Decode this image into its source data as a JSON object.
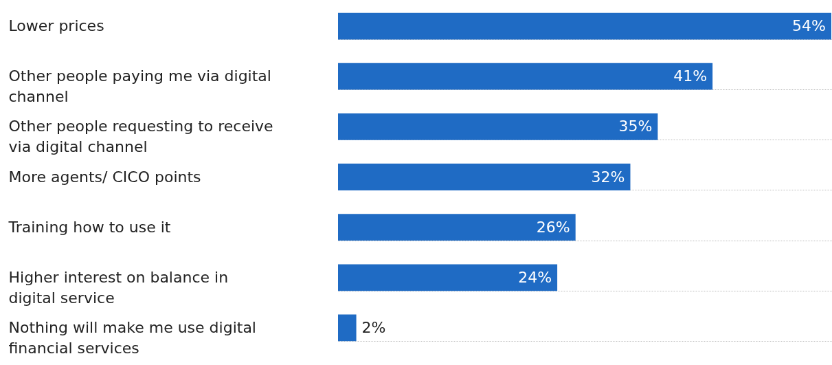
{
  "chart_data": {
    "type": "bar",
    "orientation": "horizontal",
    "categories": [
      "Lower prices",
      "Other people paying me via digital channel",
      "Other people requesting to receive via digital channel",
      "More agents/ CICO points",
      "Training how to use it",
      "Higher interest on balance in digital service",
      "Nothing will make me use digital financial services"
    ],
    "values": [
      54,
      41,
      35,
      32,
      26,
      24,
      2
    ],
    "value_labels": [
      "54%",
      "41%",
      "35%",
      "32%",
      "26%",
      "24%",
      "2%"
    ],
    "color": "#1f6bc4",
    "xlim": [
      0,
      54
    ],
    "grid": "y",
    "tick_labels": "y"
  }
}
